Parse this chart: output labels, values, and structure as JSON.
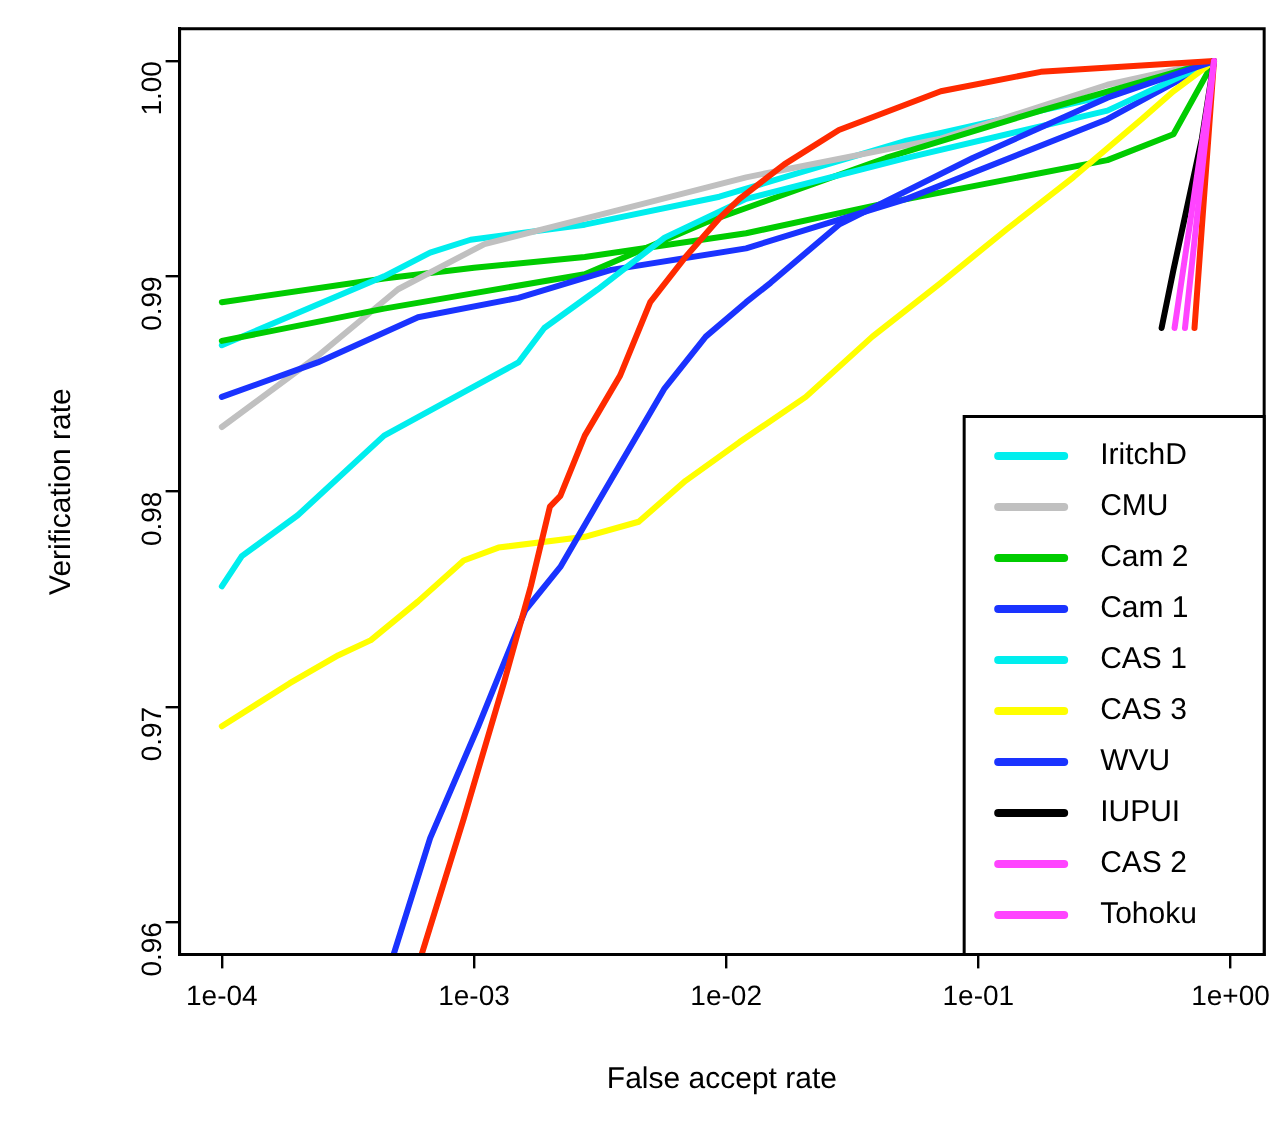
{
  "chart_data": {
    "type": "line",
    "xlabel": "False accept rate",
    "ylabel": "Verification rate",
    "log": "x",
    "xlim": [
      6.8e-05,
      1.36
    ],
    "xticks": [
      {
        "value": 0.0001,
        "label": "1e-04"
      },
      {
        "value": 0.001,
        "label": "1e-03"
      },
      {
        "value": 0.01,
        "label": "1e-02"
      },
      {
        "value": 0.1,
        "label": "1e-01"
      },
      {
        "value": 1,
        "label": "1e+00"
      }
    ],
    "ylim": [
      0.9585,
      1.0015
    ],
    "yticks": [
      {
        "value": 1,
        "label": "1.00"
      },
      0.99,
      0.98,
      0.97,
      0.96
    ],
    "grid": false,
    "legend": "bottom right",
    "series": [
      {
        "color": "#00cc00",
        "x": [
          0.0001,
          0.00044,
          0.001,
          0.00275,
          0.012,
          0.043,
          0.325,
          0.594,
          0.86
        ],
        "values": [
          0.9888,
          0.9899,
          0.9904,
          0.9909,
          0.992,
          0.9934,
          0.9954,
          0.9966,
          1.0
        ]
      },
      {
        "name": "IritchD",
        "color": "#00eeee",
        "x": [
          0.0001,
          0.00044,
          0.00067,
          0.00097,
          0.00275,
          0.0094,
          0.052,
          0.325,
          0.86
        ],
        "values": [
          0.9868,
          0.99,
          0.9911,
          0.9917,
          0.9924,
          0.9937,
          0.9963,
          0.9984,
          1.0
        ]
      },
      {
        "name": "CMU",
        "color": "#c0c0c0",
        "x": [
          0.0001,
          0.00024,
          0.0005,
          0.0011,
          0.0048,
          0.012,
          0.071,
          0.325,
          0.86
        ],
        "values": [
          0.983,
          0.9863,
          0.9894,
          0.9915,
          0.9934,
          0.9946,
          0.9964,
          0.9989,
          1.0
        ]
      },
      {
        "name": "Cam 2",
        "color": "#00cc00",
        "x": [
          0.0001,
          0.00044,
          0.00275,
          0.0083,
          0.043,
          0.177,
          0.86
        ],
        "values": [
          0.987,
          0.9885,
          0.9901,
          0.9925,
          0.9955,
          0.9977,
          1.0
        ]
      },
      {
        "name": "Cam 1",
        "color": "#1a33ff",
        "x": [
          0.0001,
          0.00024,
          0.0006,
          0.0015,
          0.0035,
          0.012,
          0.052,
          0.325,
          0.86
        ],
        "values": [
          0.9844,
          0.986,
          0.9881,
          0.989,
          0.9903,
          0.9913,
          0.9936,
          0.9973,
          1.0
        ]
      },
      {
        "name": "CAS 1",
        "color": "#00eeee",
        "x": [
          0.0001,
          0.00012,
          0.0002,
          0.00044,
          0.00097,
          0.0015,
          0.0019,
          0.0031,
          0.0057,
          0.012,
          0.052,
          0.325,
          0.86
        ],
        "values": [
          0.9756,
          0.977,
          0.9789,
          0.9826,
          0.9848,
          0.986,
          0.9876,
          0.9894,
          0.9918,
          0.9936,
          0.9955,
          0.9977,
          1.0
        ]
      },
      {
        "name": "CAS 3",
        "color": "#ffff00",
        "x": [
          0.0001,
          0.000186,
          0.00029,
          0.00039,
          0.0006,
          0.00091,
          0.00125,
          0.00275,
          0.0045,
          0.0069,
          0.0113,
          0.0207,
          0.038,
          0.071,
          0.13,
          0.238,
          0.444,
          0.594,
          0.86
        ],
        "values": [
          0.9691,
          0.9711,
          0.9724,
          0.9731,
          0.9749,
          0.9768,
          0.9774,
          0.9779,
          0.9786,
          0.9805,
          0.9823,
          0.9844,
          0.9872,
          0.9897,
          0.9922,
          0.9946,
          0.9973,
          0.9986,
          1.0
        ]
      },
      {
        "name": "WVU",
        "color": "#1a33ff",
        "x": [
          0.00048,
          0.00067,
          0.00104,
          0.0016,
          0.0022,
          0.0031,
          0.0057,
          0.0083,
          0.012,
          0.015,
          0.028,
          0.095,
          0.325,
          0.86
        ],
        "values": [
          0.9585,
          0.9639,
          0.9691,
          0.9745,
          0.9765,
          0.9795,
          0.9848,
          0.9872,
          0.9888,
          0.9897,
          0.9924,
          0.9955,
          0.9983,
          1.0
        ]
      },
      {
        "color": "#ff2a00",
        "x": [
          0.00062,
          0.00091,
          0.00132,
          0.00168,
          0.002,
          0.0022,
          0.00275,
          0.0038,
          0.005,
          0.0069,
          0.0094,
          0.0113,
          0.017,
          0.028,
          0.071,
          0.177,
          0.86
        ],
        "values": [
          0.9585,
          0.9648,
          0.9712,
          0.9756,
          0.9793,
          0.9798,
          0.9826,
          0.9854,
          0.9888,
          0.9909,
          0.9927,
          0.9936,
          0.9952,
          0.9968,
          0.9986,
          0.9995,
          1.0
        ]
      },
      {
        "color": "#ff2a00",
        "x": [
          0.72,
          0.86
        ],
        "values": [
          0.9876,
          1.0
        ]
      },
      {
        "name": "IUPUI",
        "color": "#000000",
        "x": [
          0.533,
          0.594,
          0.77,
          0.86
        ],
        "values": [
          0.9876,
          0.9903,
          0.9964,
          1.0
        ]
      },
      {
        "name": "CAS 2",
        "color": "#ff44ff",
        "x": [
          0.6,
          0.86
        ],
        "values": [
          0.9876,
          1.0
        ]
      },
      {
        "name": "Tohoku",
        "color": "#ff44ff",
        "x": [
          0.66,
          0.86
        ],
        "values": [
          0.9876,
          1.0
        ]
      }
    ]
  }
}
